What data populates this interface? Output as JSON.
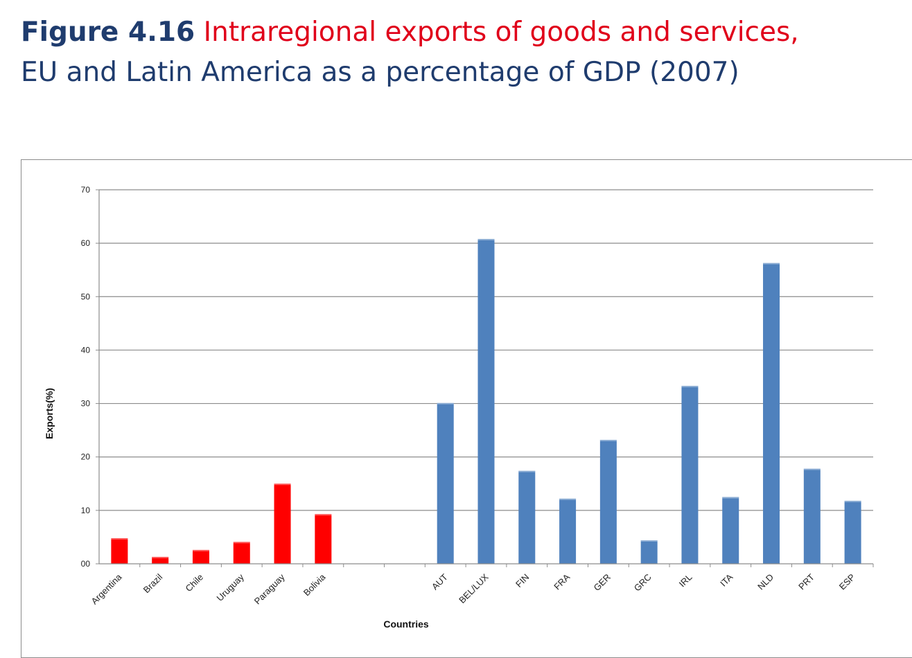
{
  "title": {
    "figure_label": "Figure 4.16",
    "line1_rest": "Intraregional exports of goods and services,",
    "line2": "EU and Latin America as a percentage of GDP (2007)"
  },
  "colors": {
    "latin_america": "#ff0000",
    "eu": "#4f81bd",
    "title_blue": "#1f3c6e",
    "title_red": "#e0001a"
  },
  "chart_data": {
    "type": "bar",
    "title": "",
    "xlabel": "Countries",
    "ylabel": "Exports(%)",
    "ylim": [
      0,
      70
    ],
    "yticks": [
      "00",
      "10",
      "20",
      "30",
      "40",
      "50",
      "60",
      "70"
    ],
    "grid": true,
    "categories": [
      "Argentina",
      "Brazil",
      "Chile",
      "Uruguay",
      "Paraguay",
      "Bolivia",
      "",
      "",
      "AUT",
      "BEL/LUX",
      "FIN",
      "FRA",
      "GER",
      "GRC",
      "IRL",
      "ITA",
      "NLD",
      "PRT",
      "ESP"
    ],
    "values": [
      4.8,
      1.3,
      2.6,
      4.1,
      15.0,
      9.3,
      null,
      null,
      30.1,
      60.8,
      17.4,
      12.2,
      23.2,
      4.4,
      33.3,
      12.5,
      56.3,
      17.8,
      11.8
    ],
    "groups": [
      "latin_america",
      "latin_america",
      "latin_america",
      "latin_america",
      "latin_america",
      "latin_america",
      "gap",
      "gap",
      "eu",
      "eu",
      "eu",
      "eu",
      "eu",
      "eu",
      "eu",
      "eu",
      "eu",
      "eu",
      "eu"
    ]
  }
}
